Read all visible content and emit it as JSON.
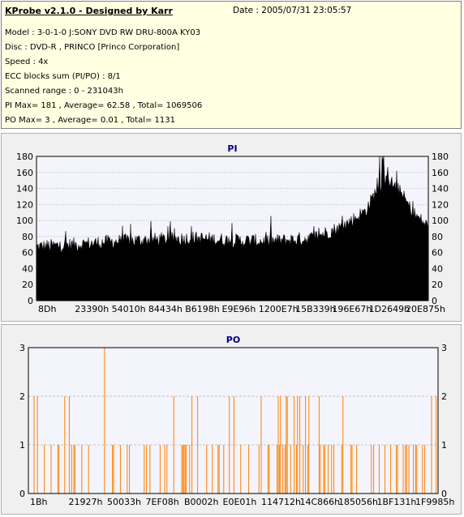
{
  "header": {
    "title": "KProbe v2.1.0 - Designed by Karr",
    "date": "Date : 2005/07/31 23:05:57",
    "lines": [
      "Model : 3-0-1-0 J:SONY    DVD RW DRU-800A  KY03",
      "Disc : DVD-R , PRINCO [Princo Corporation]",
      "Speed : 4x",
      "ECC blocks sum (PI/PO) : 8/1",
      "Scanned range : 0 - 231043h",
      "PI Max= 181 , Average= 62.58 , Total= 1069506",
      "PO Max= 3 , Average= 0.01 , Total= 1131"
    ]
  },
  "chart_data": [
    {
      "type": "area",
      "title": "PI",
      "ylim": [
        0,
        180
      ],
      "yticks": [
        0,
        20,
        40,
        60,
        80,
        100,
        120,
        140,
        160,
        180
      ],
      "xtick_labels": [
        "8Dh",
        "23390h",
        "54010h",
        "84434h",
        "B6198h",
        "E9E96h",
        "1200E7h",
        "15B339h",
        "196E67h",
        "1D2649h",
        "20E875h"
      ],
      "grid": "horizontal dotted",
      "color": "#000000",
      "max": 181,
      "average": 62.58,
      "profile": {
        "x_fraction": [
          0,
          0.1,
          0.2,
          0.3,
          0.4,
          0.5,
          0.6,
          0.7,
          0.78,
          0.84,
          0.87,
          0.9,
          0.93,
          0.96,
          1.0
        ],
        "y": [
          67,
          70,
          74,
          76,
          78,
          75,
          74,
          78,
          92,
          112,
          140,
          150,
          135,
          110,
          92
        ]
      }
    },
    {
      "type": "bar",
      "title": "PO",
      "ylim": [
        0,
        3
      ],
      "yticks": [
        0,
        1,
        2,
        3
      ],
      "xtick_labels": [
        "1Bh",
        "21927h",
        "50033h",
        "7EF08h",
        "B0002h",
        "E0E01h",
        "114712h",
        "14C866h",
        "185056h",
        "1BF131h",
        "1F9985h"
      ],
      "grid": "horizontal dashed",
      "color": "#ff8000",
      "max": 3,
      "average": 0.01
    }
  ]
}
